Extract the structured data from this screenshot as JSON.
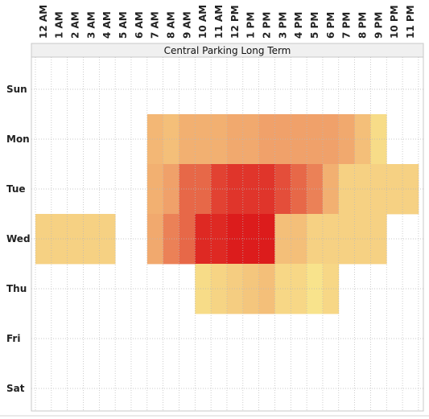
{
  "chart_data": {
    "type": "heatmap",
    "title": "Central Parking Long Term",
    "x_labels": [
      "12 AM",
      "1 AM",
      "2 AM",
      "3 AM",
      "4 AM",
      "5 AM",
      "6 AM",
      "7 AM",
      "8 AM",
      "9 AM",
      "10 AM",
      "11 AM",
      "12 PM",
      "1 PM",
      "2 PM",
      "3 PM",
      "4 PM",
      "5 PM",
      "6 PM",
      "7 PM",
      "8 PM",
      "9 PM",
      "10 PM",
      "11 PM"
    ],
    "y_labels": [
      "Sun",
      "Mon",
      "Tue",
      "Wed",
      "Thu",
      "Fri",
      "Sat"
    ],
    "grid": true,
    "legend": "none",
    "color_scale": {
      "low": "#f8e38c",
      "mid": "#ef9a66",
      "high": "#dc1c1c"
    },
    "values": [
      [
        null,
        null,
        null,
        null,
        null,
        null,
        null,
        null,
        null,
        null,
        null,
        null,
        null,
        null,
        null,
        null,
        null,
        null,
        null,
        null,
        null,
        null,
        null,
        null
      ],
      [
        null,
        null,
        null,
        null,
        null,
        null,
        null,
        0.3,
        0.25,
        0.35,
        0.35,
        0.35,
        0.4,
        0.4,
        0.45,
        0.45,
        0.45,
        0.45,
        0.45,
        0.4,
        0.25,
        0.05,
        null,
        null
      ],
      [
        null,
        null,
        null,
        null,
        null,
        null,
        null,
        0.35,
        0.45,
        0.7,
        0.7,
        0.85,
        0.9,
        0.9,
        0.9,
        0.8,
        0.7,
        0.6,
        0.35,
        0.12,
        0.12,
        0.12,
        0.12,
        0.12
      ],
      [
        0.12,
        0.12,
        0.12,
        0.12,
        0.12,
        null,
        null,
        0.4,
        0.6,
        0.7,
        0.95,
        0.95,
        1.0,
        1.0,
        1.0,
        0.25,
        0.25,
        0.12,
        0.12,
        0.12,
        0.12,
        0.12,
        null,
        null
      ],
      [
        null,
        null,
        null,
        null,
        null,
        null,
        null,
        null,
        null,
        null,
        0.05,
        0.1,
        0.15,
        0.2,
        0.25,
        0.08,
        0.08,
        0.0,
        0.08,
        null,
        null,
        null,
        null,
        null
      ],
      [
        null,
        null,
        null,
        null,
        null,
        null,
        null,
        null,
        null,
        null,
        null,
        null,
        null,
        null,
        null,
        null,
        null,
        null,
        null,
        null,
        null,
        null,
        null,
        null
      ],
      [
        null,
        null,
        null,
        null,
        null,
        null,
        null,
        null,
        null,
        null,
        null,
        null,
        null,
        null,
        null,
        null,
        null,
        null,
        null,
        null,
        null,
        null,
        null,
        null
      ]
    ]
  }
}
